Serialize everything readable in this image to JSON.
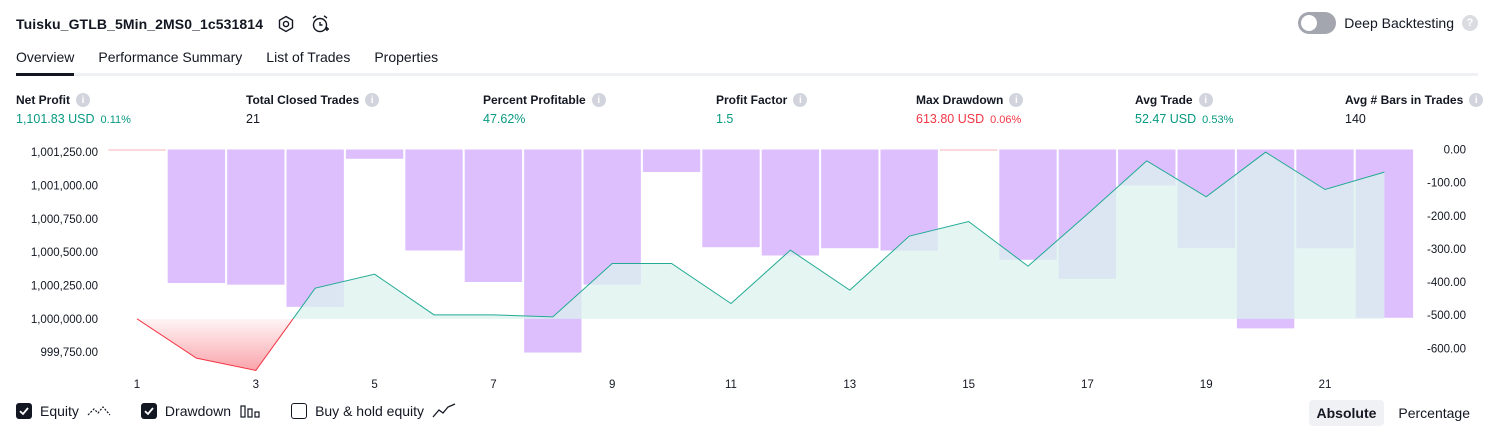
{
  "header": {
    "strategy_name": "Tuisku_GTLB_5Min_2MS0_1c531814",
    "settings_icon": "gear-icon",
    "alert_icon": "alarm-clock-plus-icon"
  },
  "deep_backtesting": {
    "label": "Deep Backtesting",
    "enabled": false,
    "help": "?"
  },
  "tabs": [
    {
      "label": "Overview",
      "active": true
    },
    {
      "label": "Performance Summary",
      "active": false
    },
    {
      "label": "List of Trades",
      "active": false
    },
    {
      "label": "Properties",
      "active": false
    }
  ],
  "metrics": {
    "net_profit": {
      "label": "Net Profit",
      "value": "1,101.83 USD",
      "pct": "0.11%"
    },
    "total_closed_trades": {
      "label": "Total Closed Trades",
      "value": "21"
    },
    "percent_profitable": {
      "label": "Percent Profitable",
      "value": "47.62%"
    },
    "profit_factor": {
      "label": "Profit Factor",
      "value": "1.5"
    },
    "max_drawdown": {
      "label": "Max Drawdown",
      "value": "613.80 USD",
      "pct": "0.06%"
    },
    "avg_trade": {
      "label": "Avg Trade",
      "value": "52.47 USD",
      "pct": "0.53%"
    },
    "avg_bars": {
      "label": "Avg # Bars in Trades",
      "value": "140"
    },
    "info_glyph": "i"
  },
  "legend": {
    "equity": {
      "label": "Equity",
      "checked": true
    },
    "drawdown": {
      "label": "Drawdown",
      "checked": true
    },
    "buy_hold": {
      "label": "Buy & hold equity",
      "checked": false
    }
  },
  "modes": {
    "absolute": "Absolute",
    "percentage": "Percentage",
    "active": "absolute"
  },
  "colors": {
    "equity_line": "#22ab94",
    "equity_fill": "#dbf2ed",
    "loss_line": "#f23645",
    "drawdown_bar": "#d8b4fe",
    "profit_green": "#089981",
    "loss_red": "#f23645"
  },
  "chart_data": {
    "type": "line",
    "x_tick_labels": [
      "1",
      "3",
      "5",
      "7",
      "9",
      "11",
      "13",
      "15",
      "17",
      "19",
      "21"
    ],
    "left_axis": {
      "ticks": [
        "1,001,250.00",
        "1,001,000.00",
        "1,000,750.00",
        "1,000,500.00",
        "1,000,250.00",
        "1,000,000.00",
        "999,750.00"
      ],
      "range": [
        999680,
        1001270
      ]
    },
    "right_axis": {
      "ticks": [
        "0.00",
        "-100.00",
        "-200.00",
        "-300.00",
        "-400.00",
        "-500.00",
        "-600.00"
      ],
      "range": [
        -640,
        0
      ]
    },
    "series": [
      {
        "name": "Equity",
        "x": [
          1,
          2,
          3,
          4,
          5,
          6,
          7,
          8,
          9,
          10,
          11,
          12,
          13,
          14,
          15,
          16,
          17,
          18,
          19,
          20,
          21,
          22
        ],
        "values": [
          1000000,
          999705,
          999613,
          1000230,
          1000335,
          1000030,
          1000030,
          1000015,
          1000415,
          1000415,
          1000115,
          1000515,
          1000215,
          1000620,
          1000730,
          1000395,
          1000785,
          1001185,
          1000915,
          1001250,
          1000970,
          1001100
        ]
      },
      {
        "name": "Drawdown",
        "x": [
          1,
          2,
          3,
          4,
          5,
          6,
          7,
          8,
          9,
          10,
          11,
          12,
          13,
          14,
          15,
          16,
          17,
          18,
          19,
          20,
          21,
          22
        ],
        "values": [
          0,
          -403,
          -408,
          -475,
          -28,
          -305,
          -400,
          -613,
          -408,
          -68,
          -295,
          -320,
          -298,
          -305,
          0,
          -333,
          -390,
          -108,
          -297,
          -540,
          -298,
          -508
        ]
      }
    ]
  }
}
